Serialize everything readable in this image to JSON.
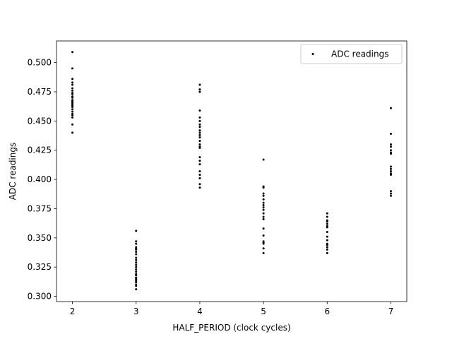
{
  "chart_data": {
    "type": "scatter",
    "title": "",
    "xlabel": "HALF_PERIOD (clock cycles)",
    "ylabel": "ADC readings",
    "xlim": [
      1.75,
      7.25
    ],
    "ylim": [
      0.2955,
      0.5185
    ],
    "xticks": [
      "2",
      "3",
      "4",
      "5",
      "6",
      "7"
    ],
    "yticks": [
      "0.300",
      "0.325",
      "0.350",
      "0.375",
      "0.400",
      "0.425",
      "0.450",
      "0.475",
      "0.500"
    ],
    "grid": false,
    "legend_position": "upper right",
    "colors": {
      "points": "#000000",
      "axes": "#000000",
      "legend_border": "#cccccc"
    },
    "series": [
      {
        "name": "ADC readings",
        "x": [
          2,
          2,
          2,
          2,
          2,
          2,
          2,
          2,
          2,
          2,
          2,
          2,
          2,
          2,
          2,
          2,
          2,
          2,
          2,
          2,
          2,
          2,
          2,
          2,
          2,
          3,
          3,
          3,
          3,
          3,
          3,
          3,
          3,
          3,
          3,
          3,
          3,
          3,
          3,
          3,
          3,
          3,
          3,
          3,
          3,
          3,
          3,
          3,
          3,
          3,
          4,
          4,
          4,
          4,
          4,
          4,
          4,
          4,
          4,
          4,
          4,
          4,
          4,
          4,
          4,
          4,
          4,
          4,
          4,
          4,
          4,
          4,
          4,
          4,
          5,
          5,
          5,
          5,
          5,
          5,
          5,
          5,
          5,
          5,
          5,
          5,
          5,
          5,
          5,
          5,
          5,
          5,
          5,
          5,
          6,
          6,
          6,
          6,
          6,
          6,
          6,
          6,
          6,
          6,
          6,
          6,
          6,
          6,
          6,
          7,
          7,
          7,
          7,
          7,
          7,
          7,
          7,
          7,
          7,
          7,
          7,
          7,
          7,
          7
        ],
        "y": [
          0.509,
          0.495,
          0.486,
          0.483,
          0.481,
          0.478,
          0.476,
          0.474,
          0.473,
          0.471,
          0.47,
          0.468,
          0.467,
          0.466,
          0.465,
          0.464,
          0.463,
          0.462,
          0.46,
          0.458,
          0.456,
          0.455,
          0.453,
          0.447,
          0.44,
          0.356,
          0.347,
          0.345,
          0.342,
          0.341,
          0.34,
          0.338,
          0.336,
          0.333,
          0.331,
          0.329,
          0.327,
          0.325,
          0.323,
          0.321,
          0.319,
          0.318,
          0.316,
          0.315,
          0.314,
          0.313,
          0.312,
          0.31,
          0.309,
          0.306,
          0.481,
          0.477,
          0.475,
          0.459,
          0.453,
          0.45,
          0.447,
          0.445,
          0.442,
          0.44,
          0.438,
          0.436,
          0.433,
          0.43,
          0.428,
          0.427,
          0.419,
          0.416,
          0.413,
          0.407,
          0.404,
          0.401,
          0.396,
          0.393,
          0.417,
          0.394,
          0.393,
          0.388,
          0.386,
          0.383,
          0.38,
          0.378,
          0.376,
          0.374,
          0.371,
          0.368,
          0.366,
          0.358,
          0.352,
          0.347,
          0.346,
          0.345,
          0.341,
          0.337,
          0.371,
          0.368,
          0.365,
          0.364,
          0.362,
          0.36,
          0.359,
          0.355,
          0.351,
          0.348,
          0.345,
          0.344,
          0.342,
          0.34,
          0.337,
          0.461,
          0.439,
          0.43,
          0.428,
          0.425,
          0.423,
          0.422,
          0.411,
          0.409,
          0.407,
          0.405,
          0.404,
          0.39,
          0.388,
          0.386
        ]
      }
    ]
  }
}
